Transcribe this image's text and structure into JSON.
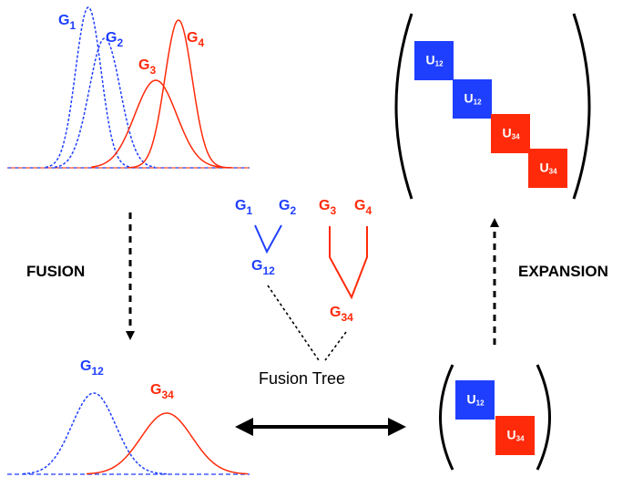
{
  "colors": {
    "blue": "#1f3fff",
    "red": "#ff2a0a",
    "black": "#000000"
  },
  "top_plot": {
    "g1": {
      "main": "G",
      "sub": "1"
    },
    "g2": {
      "main": "G",
      "sub": "2"
    },
    "g3": {
      "main": "G",
      "sub": "3"
    },
    "g4": {
      "main": "G",
      "sub": "4"
    }
  },
  "bottom_plot": {
    "g12": {
      "main": "G",
      "sub": "12"
    },
    "g34": {
      "main": "G",
      "sub": "34"
    }
  },
  "tree": {
    "g1": {
      "main": "G",
      "sub": "1"
    },
    "g2": {
      "main": "G",
      "sub": "2"
    },
    "g3": {
      "main": "G",
      "sub": "3"
    },
    "g4": {
      "main": "G",
      "sub": "4"
    },
    "g12": {
      "main": "G",
      "sub": "12"
    },
    "g34": {
      "main": "G",
      "sub": "34"
    },
    "caption": "Fusion Tree"
  },
  "arrows": {
    "fusion": "FUSION",
    "expansion": "EXPANSION"
  },
  "big_matrix": {
    "blocks": [
      {
        "main": "U",
        "sub": "12"
      },
      {
        "main": "U",
        "sub": "12"
      },
      {
        "main": "U",
        "sub": "34"
      },
      {
        "main": "U",
        "sub": "34"
      }
    ]
  },
  "small_matrix": {
    "blocks": [
      {
        "main": "U",
        "sub": "12"
      },
      {
        "main": "U",
        "sub": "34"
      }
    ]
  }
}
